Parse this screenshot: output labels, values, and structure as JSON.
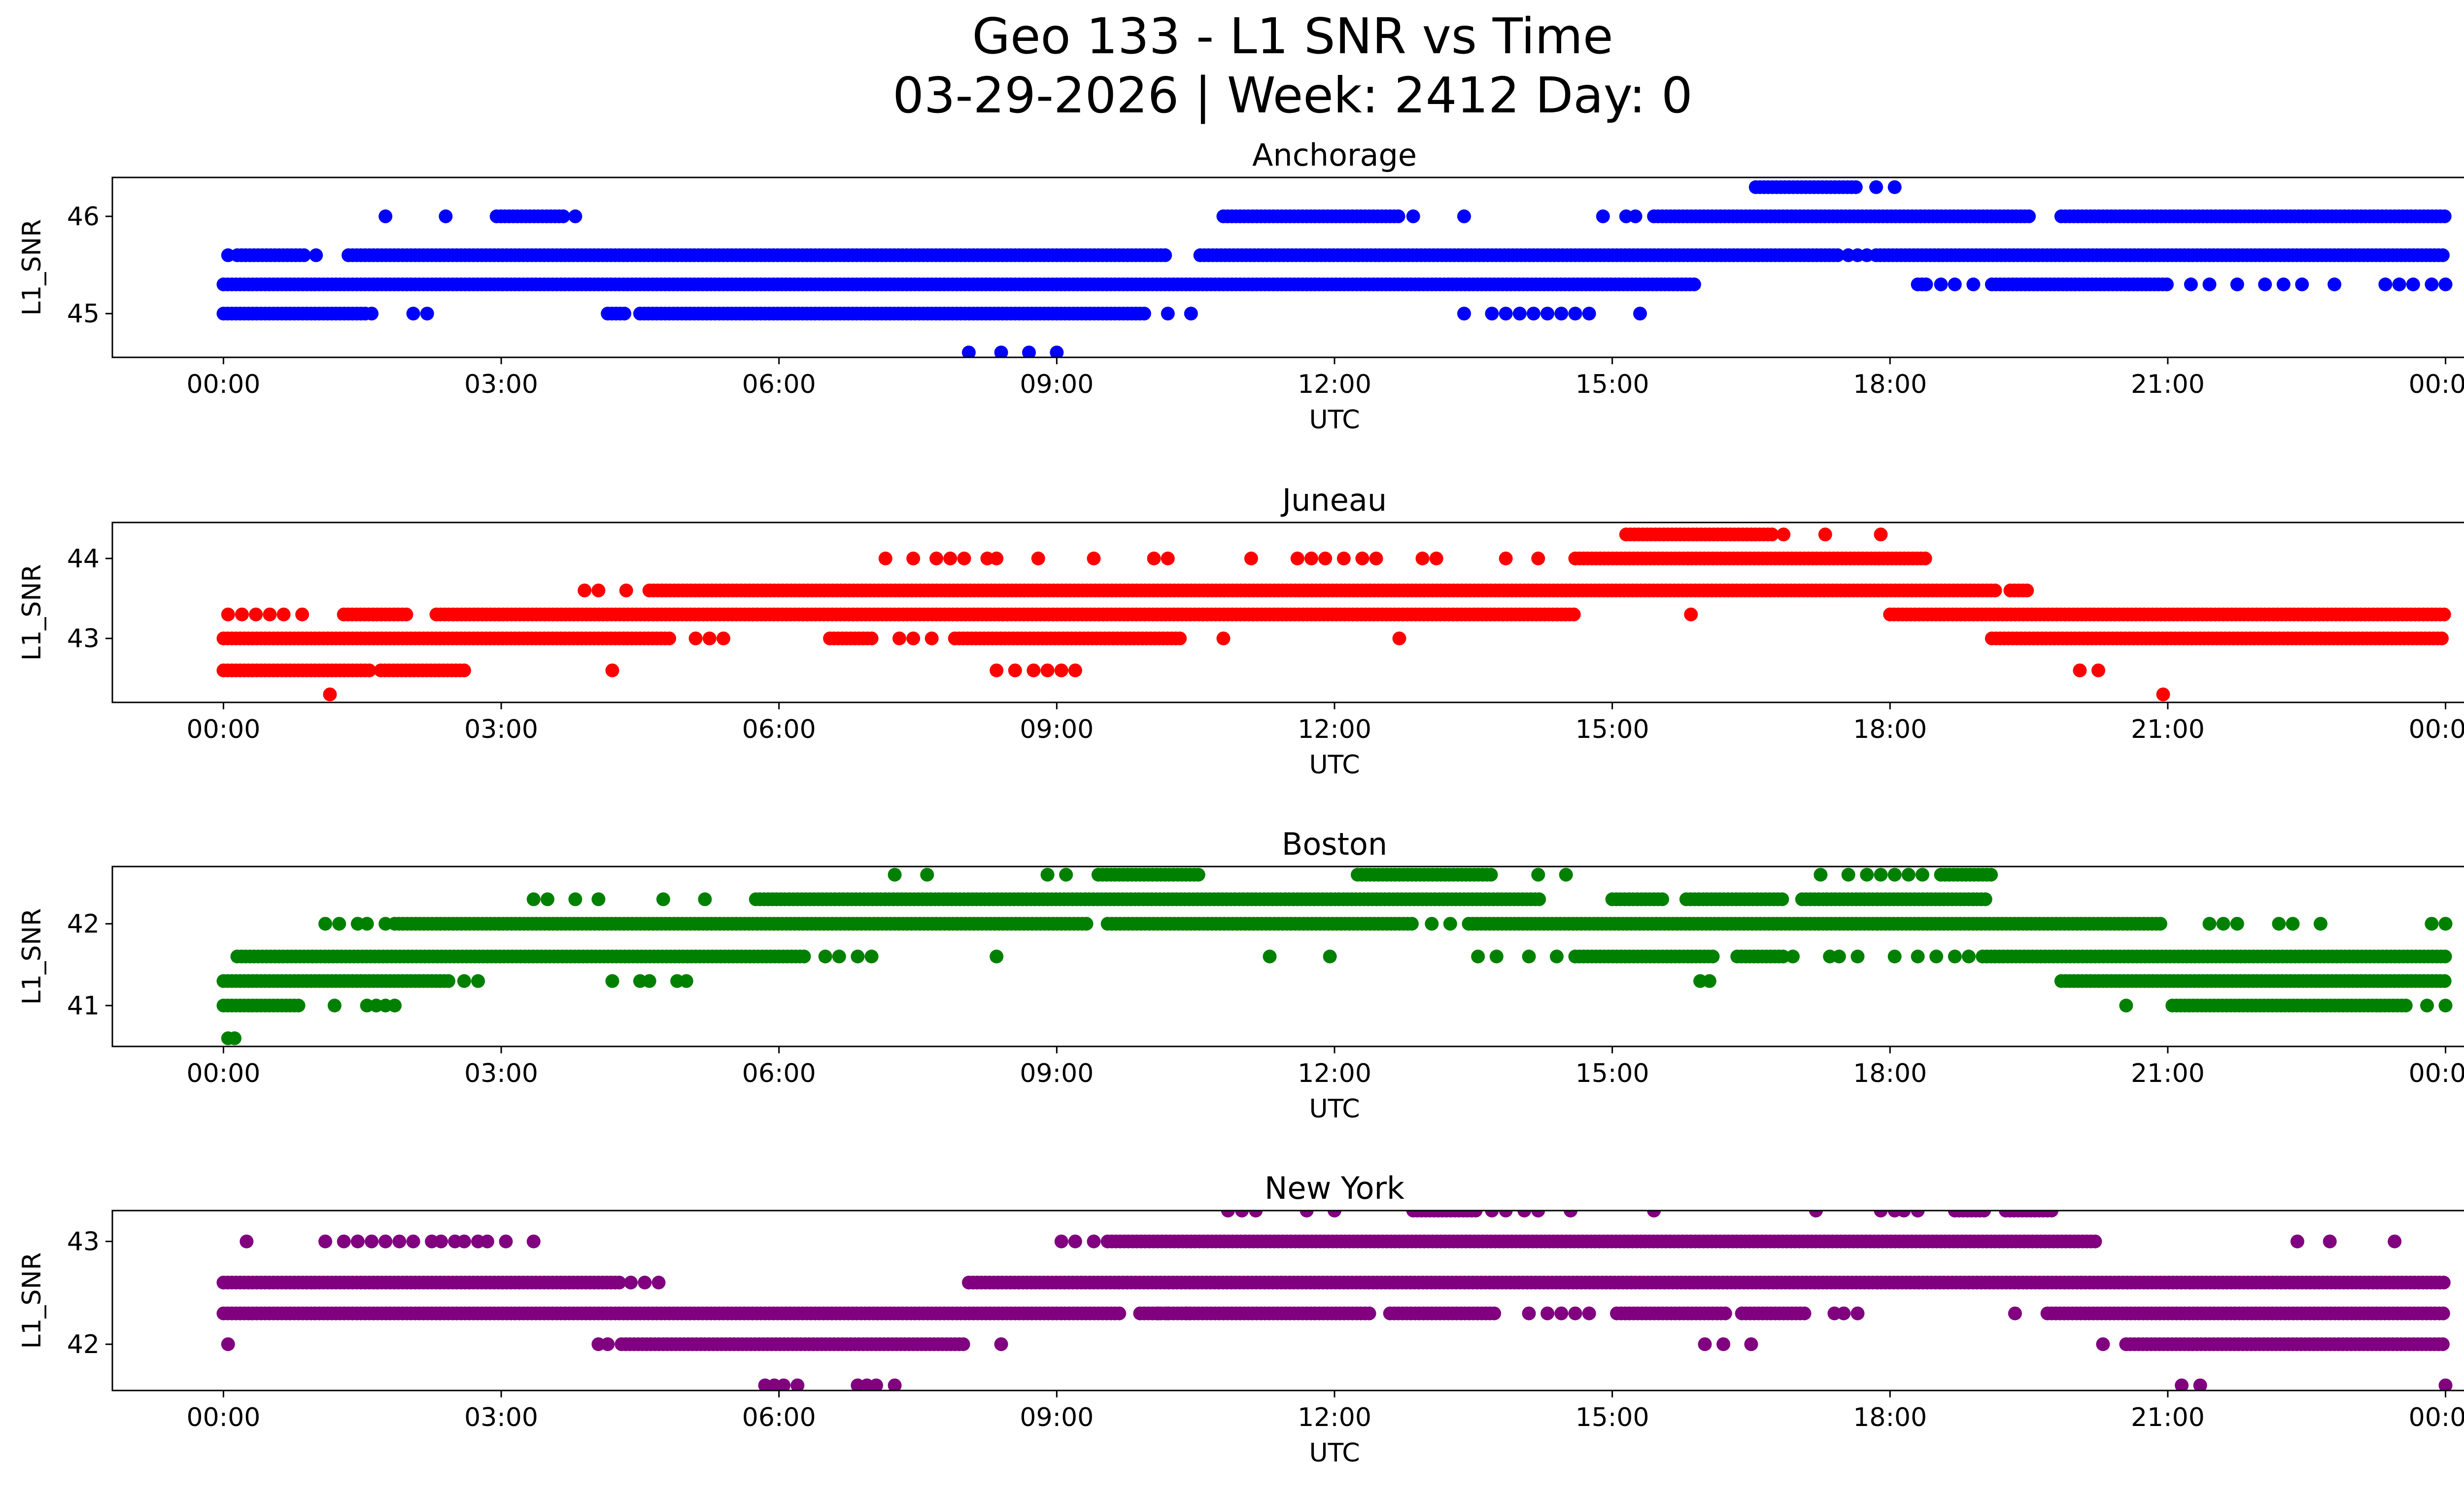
{
  "chart_data": {
    "type": "scatter",
    "title_line1": "Geo 133 - L1 SNR vs Time",
    "title_line2": "03-29-2026 | Week: 2412 Day: 0",
    "x_unit": "hours UTC",
    "x_range": [
      -1.2,
      25.2
    ],
    "x_ticks": [
      0,
      3,
      6,
      9,
      12,
      15,
      18,
      21,
      24
    ],
    "x_tick_labels": [
      "00:00",
      "03:00",
      "06:00",
      "09:00",
      "12:00",
      "15:00",
      "18:00",
      "21:00",
      "00:00"
    ],
    "panels": [
      {
        "title": "Anchorage",
        "xlabel": "UTC",
        "ylabel": "L1_SNR",
        "color": "#0000ff",
        "ylim": [
          44.55,
          46.4
        ],
        "yticks": [
          45,
          46
        ],
        "ytick_labels": [
          "45",
          "46"
        ],
        "bands": [
          {
            "y": 44.6,
            "segs": [],
            "pts": [
              8.05,
              8.4,
              8.7,
              9.0
            ]
          },
          {
            "y": 45.0,
            "segs": [
              [
                0,
                1.55
              ],
              [
                4.15,
                4.35
              ],
              [
                4.5,
                9.95
              ]
            ],
            "pts": [
              1.6,
              2.05,
              2.2,
              10.2,
              10.45,
              13.4,
              13.7,
              13.85,
              14.0,
              14.15,
              14.3,
              14.45,
              14.6,
              14.75,
              15.3
            ]
          },
          {
            "y": 45.3,
            "segs": [
              [
                0,
                15.9
              ],
              [
                18.3,
                18.4
              ],
              [
                19.1,
                21.0
              ]
            ],
            "pts": [
              18.55,
              18.7,
              18.9,
              21.25,
              21.45,
              21.75,
              22.05,
              22.25,
              22.45,
              22.8,
              23.35,
              23.5,
              23.65,
              23.85,
              24.0
            ]
          },
          {
            "y": 45.6,
            "segs": [
              [
                0.15,
                0.9
              ],
              [
                1.35,
                10.2
              ],
              [
                10.55,
                17.45
              ],
              [
                17.85,
                24.0
              ]
            ],
            "pts": [
              0.05,
              1.0,
              17.55,
              17.65,
              17.75
            ]
          },
          {
            "y": 46.0,
            "segs": [
              [
                2.95,
                3.7
              ],
              [
                10.8,
                12.7
              ],
              [
                15.45,
                19.5
              ],
              [
                19.85,
                24.0
              ]
            ],
            "pts": [
              1.75,
              2.4,
              3.8,
              12.85,
              13.4,
              14.9,
              15.15,
              15.25
            ]
          },
          {
            "y": 46.3,
            "segs": [
              [
                16.55,
                17.65
              ]
            ],
            "pts": [
              17.85,
              18.05
            ]
          }
        ]
      },
      {
        "title": "Juneau",
        "xlabel": "UTC",
        "ylabel": "L1_SNR",
        "color": "#ff0000",
        "ylim": [
          42.2,
          44.45
        ],
        "yticks": [
          43,
          44
        ],
        "ytick_labels": [
          "43",
          "44"
        ],
        "bands": [
          {
            "y": 42.3,
            "segs": [],
            "pts": [
              1.15,
              20.95
            ]
          },
          {
            "y": 42.6,
            "segs": [
              [
                0,
                1.6
              ],
              [
                1.7,
                2.6
              ]
            ],
            "pts": [
              4.2,
              8.35,
              8.55,
              8.75,
              8.9,
              9.05,
              9.2,
              20.05,
              20.25
            ]
          },
          {
            "y": 43.0,
            "segs": [
              [
                0,
                4.85
              ],
              [
                6.55,
                7.0
              ],
              [
                7.9,
                10.35
              ],
              [
                19.1,
                24.0
              ]
            ],
            "pts": [
              5.1,
              5.25,
              5.4,
              7.3,
              7.45,
              7.65,
              10.8,
              12.7
            ]
          },
          {
            "y": 43.3,
            "segs": [
              [
                1.3,
                2.0
              ],
              [
                2.3,
                14.6
              ],
              [
                18.0,
                24.0
              ]
            ],
            "pts": [
              0.05,
              0.2,
              0.35,
              0.5,
              0.65,
              0.85,
              15.85
            ]
          },
          {
            "y": 43.6,
            "segs": [
              [
                4.6,
                19.15
              ],
              [
                19.3,
                19.5
              ]
            ],
            "pts": [
              3.9,
              4.05,
              4.35
            ]
          },
          {
            "y": 44.0,
            "segs": [
              [
                14.6,
                18.4
              ]
            ],
            "pts": [
              7.15,
              7.45,
              7.7,
              7.85,
              8.0,
              8.25,
              8.35,
              8.8,
              9.4,
              10.05,
              10.2,
              11.1,
              11.6,
              11.75,
              11.9,
              12.1,
              12.3,
              12.45,
              12.95,
              13.1,
              13.85,
              14.2
            ]
          },
          {
            "y": 44.3,
            "segs": [
              [
                15.15,
                16.75
              ]
            ],
            "pts": [
              16.85,
              17.3,
              17.9
            ]
          }
        ]
      },
      {
        "title": "Boston",
        "xlabel": "UTC",
        "ylabel": "L1_SNR",
        "color": "#008000",
        "ylim": [
          40.5,
          42.7
        ],
        "yticks": [
          41,
          42
        ],
        "ytick_labels": [
          "41",
          "42"
        ],
        "bands": [
          {
            "y": 40.6,
            "segs": [],
            "pts": [
              0.05,
              0.12
            ]
          },
          {
            "y": 41.0,
            "segs": [
              [
                0,
                0.85
              ],
              [
                21.05,
                23.6
              ]
            ],
            "pts": [
              1.2,
              1.55,
              1.65,
              1.75,
              1.85,
              20.55,
              23.8,
              24.0
            ]
          },
          {
            "y": 41.3,
            "segs": [
              [
                0,
                2.45
              ],
              [
                19.85,
                24.0
              ]
            ],
            "pts": [
              2.6,
              2.75,
              4.2,
              4.5,
              4.6,
              4.9,
              5.0,
              15.95,
              16.05
            ]
          },
          {
            "y": 41.6,
            "segs": [
              [
                0.15,
                6.3
              ],
              [
                14.6,
                16.1
              ],
              [
                16.35,
                16.85
              ],
              [
                19.0,
                24.0
              ]
            ],
            "pts": [
              6.5,
              6.65,
              6.85,
              7.0,
              8.35,
              11.3,
              11.95,
              13.55,
              13.75,
              14.1,
              14.4,
              16.95,
              17.35,
              17.45,
              17.65,
              18.05,
              18.3,
              18.5,
              18.7,
              18.85
            ]
          },
          {
            "y": 42.0,
            "segs": [
              [
                1.85,
                9.35
              ],
              [
                9.55,
                12.85
              ],
              [
                13.45,
                20.95
              ]
            ],
            "pts": [
              1.1,
              1.25,
              1.45,
              1.55,
              1.75,
              13.05,
              13.25,
              21.45,
              21.6,
              21.75,
              22.2,
              22.35,
              22.65,
              23.85,
              24.0
            ]
          },
          {
            "y": 42.3,
            "segs": [
              [
                5.75,
                14.25
              ],
              [
                15.0,
                15.55
              ],
              [
                15.8,
                16.85
              ],
              [
                17.05,
                19.05
              ]
            ],
            "pts": [
              3.35,
              3.5,
              3.8,
              4.05,
              4.75,
              5.2
            ]
          },
          {
            "y": 42.6,
            "segs": [
              [
                9.45,
                10.55
              ],
              [
                12.25,
                13.7
              ],
              [
                18.55,
                19.1
              ]
            ],
            "pts": [
              7.25,
              7.6,
              8.9,
              9.1,
              14.2,
              14.5,
              17.25,
              17.55,
              17.75,
              17.9,
              18.05,
              18.2,
              18.35
            ]
          }
        ]
      },
      {
        "title": "New York",
        "xlabel": "UTC",
        "ylabel": "L1_SNR",
        "color": "#800080",
        "ylim": [
          41.55,
          43.3
        ],
        "yticks": [
          42,
          43
        ],
        "ytick_labels": [
          "42",
          "43"
        ],
        "bands": [
          {
            "y": 41.6,
            "segs": [],
            "pts": [
              5.85,
              5.95,
              6.05,
              6.2,
              6.85,
              6.95,
              7.05,
              7.25,
              21.15,
              21.35,
              24.0
            ]
          },
          {
            "y": 42.0,
            "segs": [
              [
                4.3,
                8.0
              ],
              [
                20.55,
                24.0
              ]
            ],
            "pts": [
              0.05,
              4.05,
              4.15,
              8.4,
              16.0,
              16.2,
              16.5,
              20.3
            ]
          },
          {
            "y": 42.3,
            "segs": [
              [
                0,
                9.7
              ],
              [
                9.9,
                12.4
              ],
              [
                12.6,
                13.75
              ],
              [
                15.05,
                16.25
              ],
              [
                16.4,
                17.1
              ],
              [
                19.7,
                24.0
              ]
            ],
            "pts": [
              10.1,
              10.2,
              10.4,
              14.1,
              14.3,
              14.45,
              14.6,
              14.75,
              17.4,
              17.5,
              17.65,
              19.35
            ]
          },
          {
            "y": 42.6,
            "segs": [
              [
                0,
                4.3
              ],
              [
                8.05,
                24.0
              ]
            ],
            "pts": [
              4.4,
              4.55,
              4.7
            ]
          },
          {
            "y": 43.0,
            "segs": [
              [
                9.55,
                20.25
              ]
            ],
            "pts": [
              0.25,
              1.1,
              1.3,
              1.45,
              1.6,
              1.75,
              1.9,
              2.05,
              2.25,
              2.35,
              2.5,
              2.6,
              2.75,
              2.85,
              3.05,
              3.35,
              9.05,
              9.2,
              9.4,
              22.4,
              22.75,
              23.45
            ]
          },
          {
            "y": 43.3,
            "segs": [
              [
                12.85,
                13.55
              ],
              [
                18.7,
                19.05
              ],
              [
                19.25,
                19.75
              ]
            ],
            "pts": [
              10.85,
              11.0,
              11.15,
              11.7,
              12.0,
              13.7,
              13.85,
              14.05,
              14.2,
              14.55,
              15.45,
              17.2,
              17.9,
              18.05,
              18.15,
              18.3
            ]
          }
        ]
      }
    ]
  }
}
